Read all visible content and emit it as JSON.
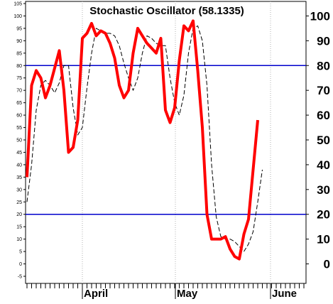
{
  "chart_data": {
    "type": "line",
    "title": "Stochastic Oscillator (58.1335)",
    "ylim": [
      -5,
      105
    ],
    "left_ticks": [
      "-5",
      "0",
      "5",
      "10",
      "15",
      "20",
      "25",
      "30",
      "35",
      "40",
      "45",
      "50",
      "55",
      "60",
      "65",
      "70",
      "75",
      "80",
      "85",
      "90",
      "95",
      "100",
      "105"
    ],
    "right_ticks": [
      "0",
      "10",
      "20",
      "30",
      "40",
      "50",
      "60",
      "70",
      "80",
      "90",
      "100"
    ],
    "x_labels": [
      "April",
      "May",
      "June"
    ],
    "reference_lines": [
      80,
      20
    ],
    "grid": "vertical dotted at month boundaries",
    "series": [
      {
        "color": "#ff0000",
        "style": "thick solid",
        "values": [
          35,
          72,
          78,
          75,
          67,
          72,
          79,
          86,
          70,
          45,
          47,
          58,
          91,
          93,
          97,
          92,
          94,
          93,
          89,
          83,
          72,
          67,
          70,
          85,
          95,
          92,
          89,
          87,
          85,
          91,
          62,
          57,
          63,
          82,
          96,
          94,
          98,
          78,
          55,
          20,
          10,
          10,
          10,
          11,
          6,
          3,
          2,
          12,
          18,
          38,
          58
        ]
      },
      {
        "color": "#000000",
        "style": "thin dashed",
        "values": [
          25,
          40,
          62,
          72,
          74,
          72,
          69,
          73,
          80,
          80,
          63,
          52,
          55,
          71,
          85,
          95,
          94,
          93,
          93,
          92,
          88,
          81,
          75,
          70,
          75,
          85,
          92,
          91,
          89,
          88,
          88,
          75,
          65,
          60,
          68,
          85,
          95,
          96,
          90,
          72,
          40,
          19,
          11,
          10,
          10,
          9,
          7,
          5,
          8,
          13,
          25,
          38
        ]
      }
    ]
  }
}
